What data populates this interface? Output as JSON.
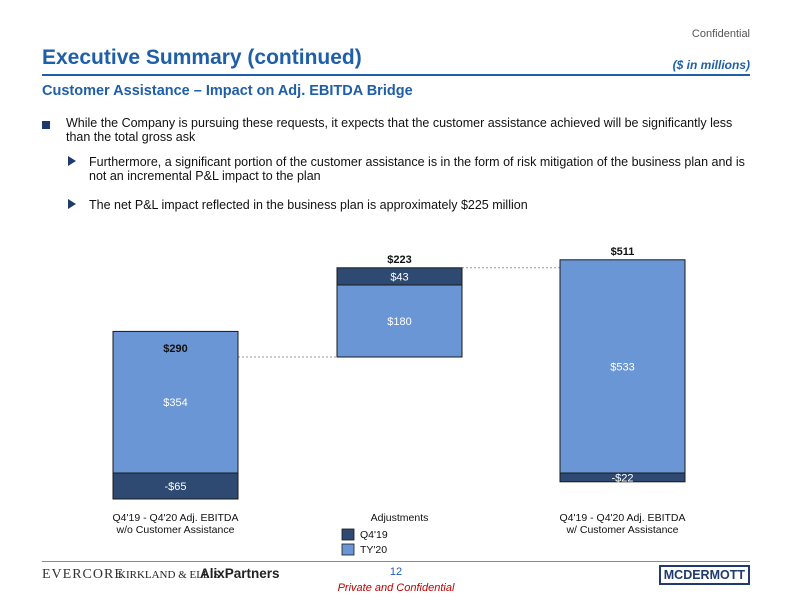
{
  "header": {
    "confidential": "Confidential",
    "title": "Executive Summary (continued)",
    "units": "($ in millions)",
    "subtitle": "Customer Assistance – Impact on Adj. EBITDA Bridge"
  },
  "bullets": {
    "main": "While the Company is pursuing these requests, it expects that the customer assistance achieved will be significantly less than the total gross ask",
    "sub1": "Furthermore, a significant portion of the customer assistance is in the form of risk mitigation of the business plan and is not an incremental P&L impact to the plan",
    "sub2": "The net P&L impact reflected in the business plan is approximately $225 million"
  },
  "chart_data": {
    "type": "bar",
    "subtype": "waterfall",
    "categories": [
      "Q4'19 - Q4'20 Adj. EBITDA w/o Customer Assistance",
      "Adjustments",
      "Q4'19 - Q4'20 Adj. EBITDA w/ Customer Assistance"
    ],
    "category_lines": [
      [
        "Q4'19 - Q4'20 Adj. EBITDA",
        "w/o Customer Assistance"
      ],
      [
        "Adjustments"
      ],
      [
        "Q4'19 - Q4'20 Adj. EBITDA",
        "w/ Customer Assistance"
      ]
    ],
    "series": [
      {
        "name": "Q4'19",
        "color": "#2e4a72",
        "values": [
          -65,
          43,
          -22
        ],
        "labels": [
          "-$65",
          "$43",
          "-$22"
        ]
      },
      {
        "name": "TY'20",
        "color": "#6b96d6",
        "values": [
          354,
          180,
          533
        ],
        "labels": [
          "$354",
          "$180",
          "$533"
        ]
      }
    ],
    "totals": [
      290,
      223,
      511
    ],
    "total_labels": [
      "$290",
      "$223",
      "$511"
    ],
    "legend": [
      "Q4'19",
      "TY'20"
    ],
    "legend_position": "bottom-center",
    "ylim": [
      -100,
      560
    ]
  },
  "footer": {
    "logo_evercore": "EVERCORE",
    "logo_kirkland": "KIRKLAND & ELLIS",
    "logo_alix": "AlixPartners",
    "page_number": "12",
    "private": "Private and Confidential",
    "logo_mcdermott": "MCDERMOTT"
  }
}
